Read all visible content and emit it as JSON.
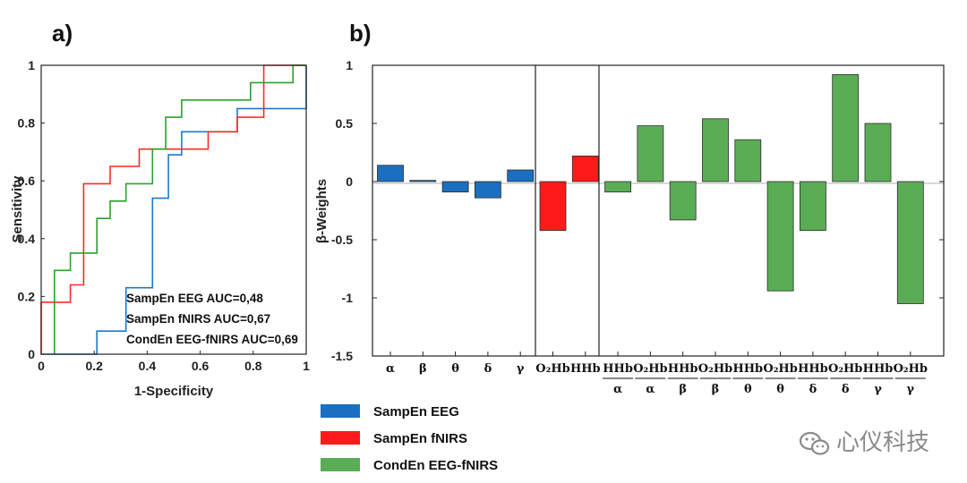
{
  "chart_data": [
    {
      "type": "line",
      "panel_label": "a)",
      "xlabel": "1-Specificity",
      "ylabel": "Sensitivity",
      "xlim": [
        0,
        1
      ],
      "ylim": [
        0,
        1
      ],
      "x_tick_labels": [
        "0",
        "0.2",
        "0.4",
        "0.6",
        "0.8",
        "1"
      ],
      "y_tick_labels": [
        "0",
        "0.2",
        "0.4",
        "0.6",
        "0.8",
        "1"
      ],
      "x_ticks": [
        0,
        0.2,
        0.4,
        0.6,
        0.8,
        1
      ],
      "y_ticks": [
        0,
        0.2,
        0.4,
        0.6,
        0.8,
        1
      ],
      "grid": false,
      "annotations": [
        "SampEn EEG AUC=0,48",
        "SampEn fNIRS AUC=0,67",
        "CondEn EEG-fNIRS AUC=0,69"
      ],
      "series": [
        {
          "name": "SampEn EEG",
          "color": "#1f77d0",
          "x": [
            0,
            0.21,
            0.21,
            0.32,
            0.32,
            0.42,
            0.42,
            0.48,
            0.48,
            0.53,
            0.53,
            0.74,
            0.74,
            1,
            1
          ],
          "y": [
            0,
            0,
            0.08,
            0.08,
            0.23,
            0.23,
            0.54,
            0.54,
            0.69,
            0.69,
            0.77,
            0.77,
            0.85,
            0.85,
            1
          ]
        },
        {
          "name": "SampEn fNIRS",
          "color": "#ff2a2a",
          "x": [
            0,
            0,
            0.11,
            0.11,
            0.16,
            0.16,
            0.26,
            0.26,
            0.37,
            0.37,
            0.63,
            0.63,
            0.74,
            0.74,
            0.84,
            0.84,
            1
          ],
          "y": [
            0,
            0.18,
            0.18,
            0.24,
            0.24,
            0.59,
            0.59,
            0.65,
            0.65,
            0.71,
            0.71,
            0.77,
            0.77,
            0.82,
            0.82,
            1,
            1
          ]
        },
        {
          "name": "CondEn EEG-fNIRS",
          "color": "#2ca02c",
          "x": [
            0.05,
            0.05,
            0.11,
            0.11,
            0.21,
            0.21,
            0.26,
            0.26,
            0.32,
            0.32,
            0.42,
            0.42,
            0.47,
            0.47,
            0.53,
            0.53,
            0.79,
            0.79,
            0.95,
            0.95,
            1
          ],
          "y": [
            0,
            0.29,
            0.29,
            0.35,
            0.35,
            0.47,
            0.47,
            0.53,
            0.53,
            0.59,
            0.59,
            0.71,
            0.71,
            0.82,
            0.82,
            0.88,
            0.88,
            0.94,
            0.94,
            1,
            1
          ]
        }
      ]
    },
    {
      "type": "bar",
      "panel_label": "b)",
      "ylabel": "β-Weights",
      "ylim": [
        -1.5,
        1
      ],
      "y_tick_labels": [
        "1",
        "0.5",
        "0",
        "-0.5",
        "-1",
        "-1.5"
      ],
      "y_ticks": [
        1,
        0.5,
        0,
        -0.5,
        -1,
        -1.5
      ],
      "grid": false,
      "legend_placement": "below",
      "categories": [
        "α",
        "β",
        "θ",
        "δ",
        "γ",
        "O2Hb",
        "HHb",
        "HHb/α",
        "O2Hb/α",
        "HHb/β",
        "O2Hb/β",
        "HHb/θ",
        "O2Hb/θ",
        "HHb/δ",
        "O2Hb/δ",
        "HHb/γ",
        "O2Hb/γ"
      ],
      "category_labels": [
        {
          "top": "α",
          "bottom": ""
        },
        {
          "top": "β",
          "bottom": ""
        },
        {
          "top": "θ",
          "bottom": ""
        },
        {
          "top": "δ",
          "bottom": ""
        },
        {
          "top": "γ",
          "bottom": ""
        },
        {
          "top": "O₂Hb",
          "bottom": ""
        },
        {
          "top": "HHb",
          "bottom": ""
        },
        {
          "top": "HHb",
          "bottom": "α"
        },
        {
          "top": "O₂Hb",
          "bottom": "α"
        },
        {
          "top": "HHb",
          "bottom": "β"
        },
        {
          "top": "O₂Hb",
          "bottom": "β"
        },
        {
          "top": "HHb",
          "bottom": "θ"
        },
        {
          "top": "O₂Hb",
          "bottom": "θ"
        },
        {
          "top": "HHb",
          "bottom": "δ"
        },
        {
          "top": "O₂Hb",
          "bottom": "δ"
        },
        {
          "top": "HHb",
          "bottom": "γ"
        },
        {
          "top": "O₂Hb",
          "bottom": "γ"
        }
      ],
      "values": [
        0.14,
        0.01,
        -0.09,
        -0.14,
        0.1,
        -0.42,
        0.22,
        -0.09,
        0.48,
        -0.33,
        0.54,
        0.36,
        -0.94,
        -0.42,
        0.92,
        0.5,
        -1.05
      ],
      "group_of_bar": [
        0,
        0,
        0,
        0,
        0,
        1,
        1,
        2,
        2,
        2,
        2,
        2,
        2,
        2,
        2,
        2,
        2
      ],
      "series": [
        {
          "name": "SampEn EEG",
          "color": "#1a6fc0"
        },
        {
          "name": "SampEn fNIRS",
          "color": "#ff1a1a"
        },
        {
          "name": "CondEn EEG-fNIRS",
          "color": "#5aad55"
        }
      ]
    }
  ],
  "watermark": {
    "text": "心仪科技",
    "icon": "wechat-icon"
  }
}
